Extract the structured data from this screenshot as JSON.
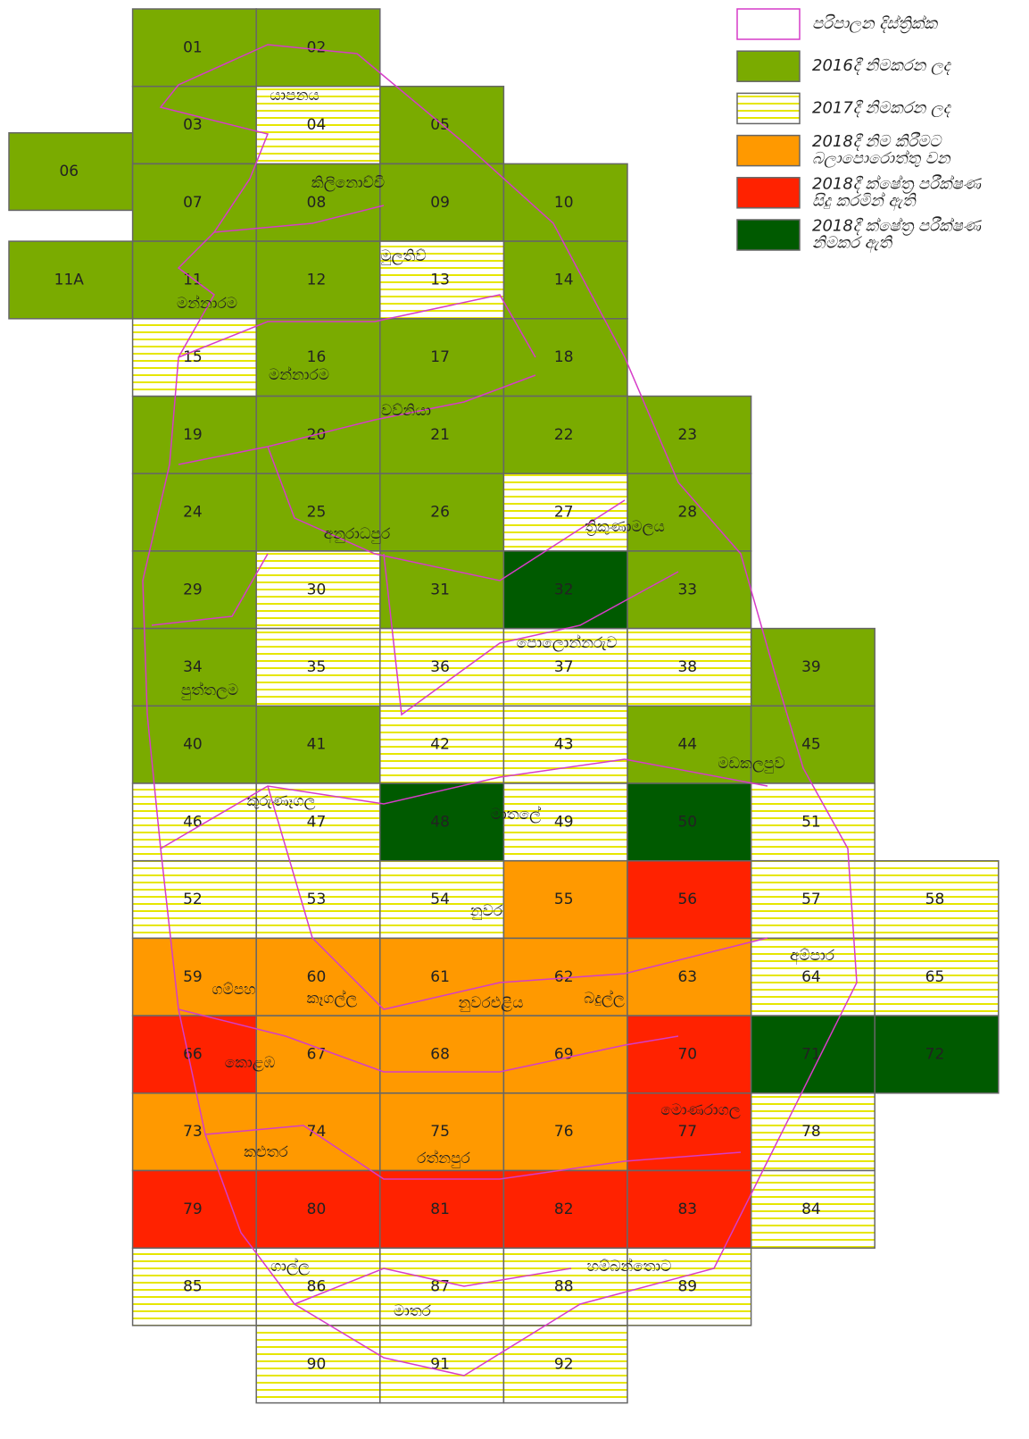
{
  "legend": {
    "items": [
      {
        "label": [
          "පරිපාලන දිස්ත්‍රික්ක"
        ],
        "color": "#ffffff",
        "border": "#d63cc8",
        "tiles": []
      },
      {
        "label": [
          "2016දී නිමකරන ලද"
        ],
        "color": "#7aab00",
        "tiles": [
          "01",
          "02",
          "03",
          "05",
          "06",
          "07",
          "08",
          "09",
          "10",
          "11A",
          "11",
          "12",
          "14",
          "16",
          "17",
          "18",
          "19",
          "20",
          "21",
          "22",
          "23",
          "24",
          "25",
          "26",
          "28",
          "29",
          "31",
          "33",
          "34",
          "39",
          "40",
          "41",
          "44",
          "45"
        ]
      },
      {
        "label": [
          "2017දී නිමකරන ලද"
        ],
        "color": "#e6e600",
        "fill": "stripes",
        "tiles": [
          "04",
          "13",
          "15",
          "27",
          "30",
          "35",
          "36",
          "37",
          "38",
          "42",
          "43",
          "46",
          "47",
          "49",
          "51",
          "52",
          "53",
          "54",
          "57",
          "58",
          "64",
          "65",
          "78",
          "84",
          "85",
          "86",
          "87",
          "88",
          "89",
          "90",
          "91",
          "92"
        ]
      },
      {
        "label": [
          "2018දී නිම කිරීමට",
          "බලාපොරොත්තු වන"
        ],
        "color": "#ff9900",
        "tiles": [
          "55",
          "59",
          "60",
          "61",
          "62",
          "63",
          "67",
          "68",
          "69",
          "73",
          "74",
          "75",
          "76"
        ]
      },
      {
        "label": [
          "2018දී ක්ෂේත්‍ර පරීක්ෂණ",
          "සිදු කරමින් ඇති"
        ],
        "color": "#ff2200",
        "tiles": [
          "56",
          "66",
          "70",
          "77",
          "79",
          "80",
          "81",
          "82",
          "83"
        ]
      },
      {
        "label": [
          "2018දී ක්ෂේත්‍ර පරීක්ෂණ",
          "නිමකර ඇති"
        ],
        "color": "#005a00",
        "tiles": [
          "32",
          "48",
          "50",
          "71",
          "72"
        ]
      }
    ]
  },
  "districts": [
    "යාපනය",
    "කිලිනොච්චි",
    "මුලතිව්",
    "මන්නාරම",
    "මන්නාරම",
    "වව්නියා",
    "අනුරාධපුර",
    "ත්‍රිකුණාමලය",
    "පොලොන්නරුව",
    "පුත්තලම",
    "මඩකලපුව",
    "කුරුණෑගල",
    "මාතලේ",
    "නුවර",
    "අම්පාර",
    "ගම්පහ",
    "කෑගල්ල",
    "නුවරඑළිය",
    "බදුල්ල",
    "කොළඹ",
    "මොණරාගල",
    "කළුතර",
    "රත්නපුර",
    "ගාල්ල",
    "හම්බන්තොට",
    "මාතර"
  ]
}
